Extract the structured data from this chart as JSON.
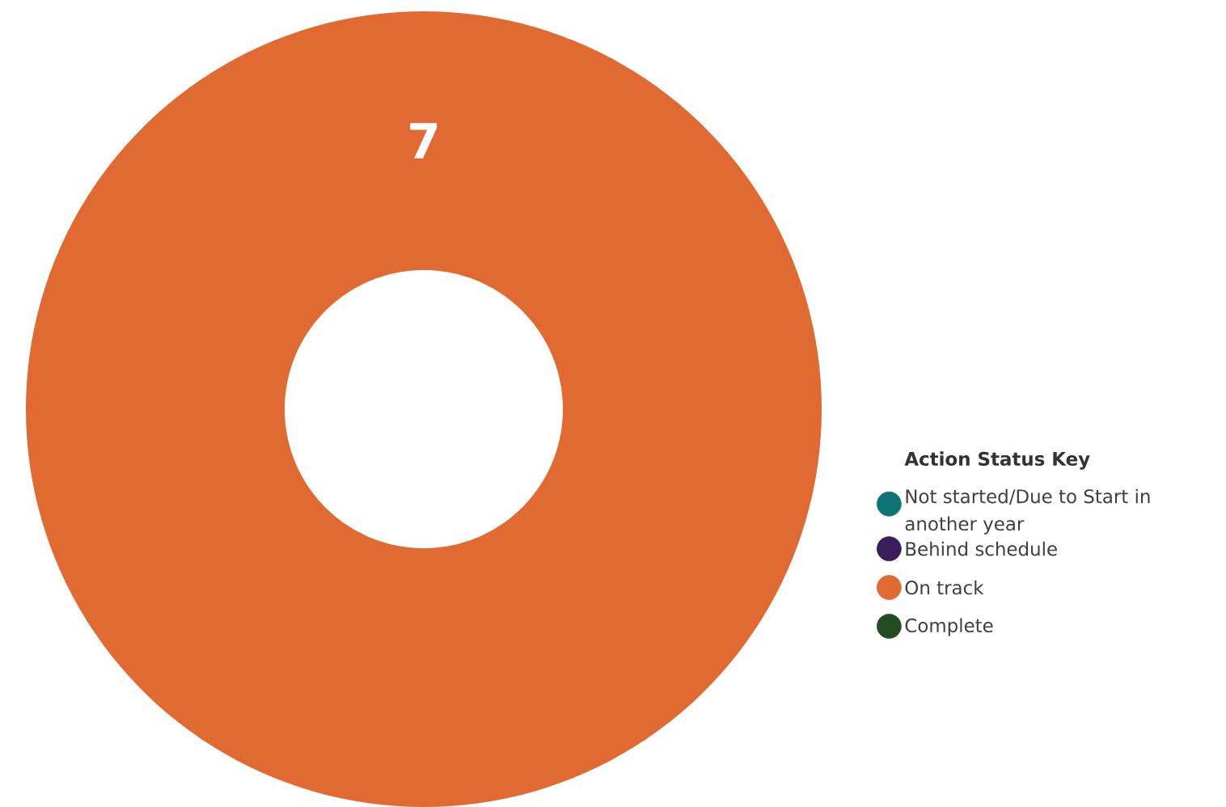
{
  "chart_data": {
    "type": "donut",
    "categories": [
      "Not started/Due to Start in another year",
      "Behind schedule",
      "On track",
      "Complete"
    ],
    "values": [
      0,
      0,
      7,
      0
    ],
    "colors": [
      "#0e7474",
      "#3b1d5c",
      "#e06a32",
      "#244c24"
    ],
    "legend_title": "Action Status Key",
    "legend": "right",
    "data_labels": true
  }
}
